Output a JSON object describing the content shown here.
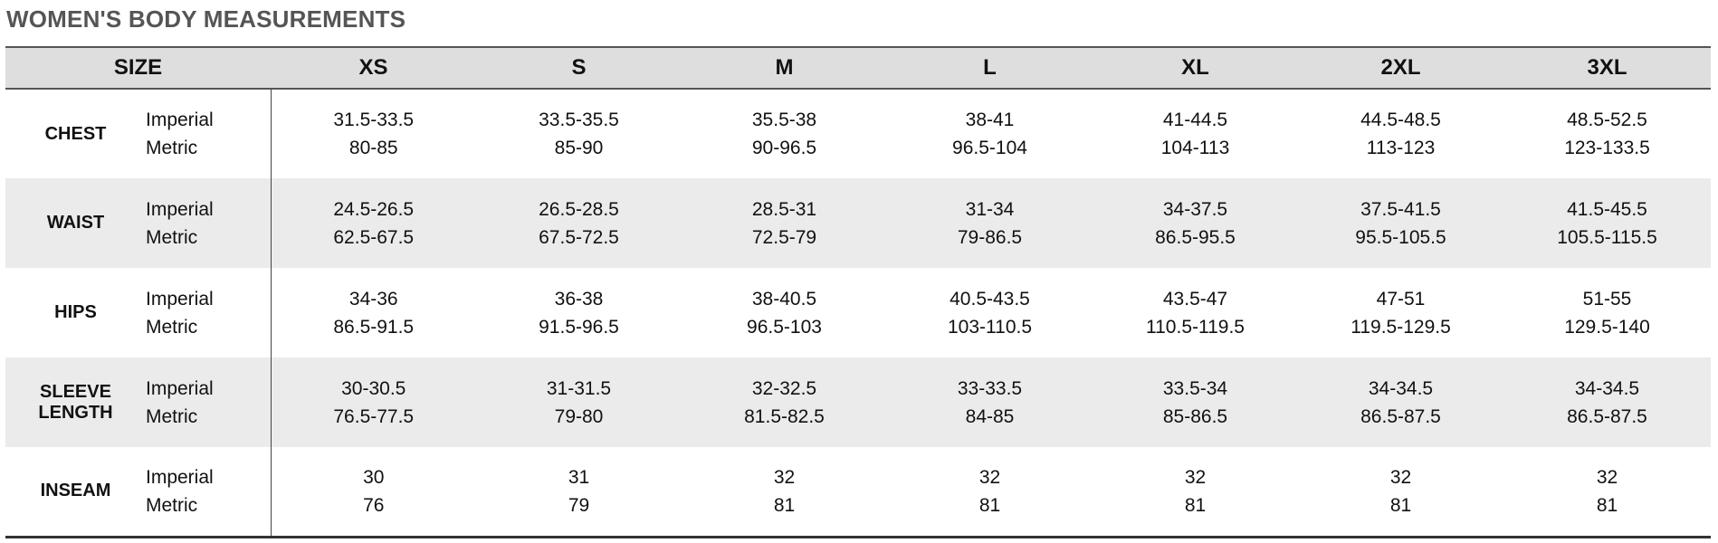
{
  "title": "WOMEN'S BODY MEASUREMENTS",
  "size_header": "SIZE",
  "sizes": [
    "XS",
    "S",
    "M",
    "L",
    "XL",
    "2XL",
    "3XL"
  ],
  "rows": [
    {
      "category": "CHEST",
      "imperial_label": "Imperial",
      "metric_label": "Metric",
      "imperial": [
        "31.5-33.5",
        "33.5-35.5",
        "35.5-38",
        "38-41",
        "41-44.5",
        "44.5-48.5",
        "48.5-52.5"
      ],
      "metric": [
        "80-85",
        "85-90",
        "90-96.5",
        "96.5-104",
        "104-113",
        "113-123",
        "123-133.5"
      ]
    },
    {
      "category": "WAIST",
      "imperial_label": "Imperial",
      "metric_label": "Metric",
      "imperial": [
        "24.5-26.5",
        "26.5-28.5",
        "28.5-31",
        "31-34",
        "34-37.5",
        "37.5-41.5",
        "41.5-45.5"
      ],
      "metric": [
        "62.5-67.5",
        "67.5-72.5",
        "72.5-79",
        "79-86.5",
        "86.5-95.5",
        "95.5-105.5",
        "105.5-115.5"
      ]
    },
    {
      "category": "HIPS",
      "imperial_label": "Imperial",
      "metric_label": "Metric",
      "imperial": [
        "34-36",
        "36-38",
        "38-40.5",
        "40.5-43.5",
        "43.5-47",
        "47-51",
        "51-55"
      ],
      "metric": [
        "86.5-91.5",
        "91.5-96.5",
        "96.5-103",
        "103-110.5",
        "110.5-119.5",
        "119.5-129.5",
        "129.5-140"
      ]
    },
    {
      "category": "SLEEVE LENGTH",
      "category_lines": [
        "SLEEVE",
        "LENGTH"
      ],
      "imperial_label": "Imperial",
      "metric_label": "Metric",
      "imperial": [
        "30-30.5",
        "31-31.5",
        "32-32.5",
        "33-33.5",
        "33.5-34",
        "34-34.5",
        "34-34.5"
      ],
      "metric": [
        "76.5-77.5",
        "79-80",
        "81.5-82.5",
        "84-85",
        "85-86.5",
        "86.5-87.5",
        "86.5-87.5"
      ]
    },
    {
      "category": "INSEAM",
      "imperial_label": "Imperial",
      "metric_label": "Metric",
      "imperial": [
        "30",
        "31",
        "32",
        "32",
        "32",
        "32",
        "32"
      ],
      "metric": [
        "76",
        "79",
        "81",
        "81",
        "81",
        "81",
        "81"
      ]
    }
  ]
}
